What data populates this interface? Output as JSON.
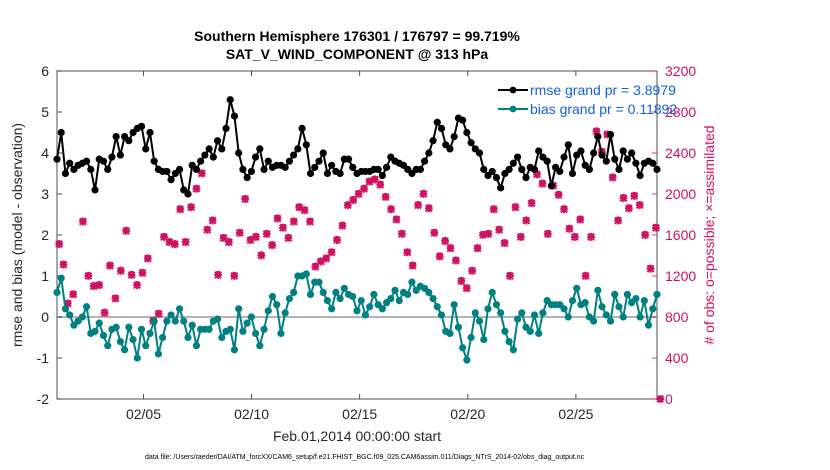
{
  "chart_data": {
    "type": "line",
    "title": "Southern Hemisphere 176301 / 176797 = 99.719%",
    "subtitle": "SAT_V_WIND_COMPONENT @ 313 hPa",
    "xlabel": "Feb.01,2014 00:00:00 start",
    "ylabel": "rmse and bias (model - observation)",
    "ylabel_right": "# of obs: o=possible; ×=assimilated",
    "footer": "data file: /Users/raeder/DAI/ATM_forcXX/CAM6_setup/f.e21.FHIST_BGC.f09_025.CAM6assim.011/Diags_NTrS_2014-02/obs_diag_output.nc",
    "x_ticks": [
      "02/05",
      "02/10",
      "02/15",
      "02/20",
      "02/25"
    ],
    "x_tick_days": [
      5,
      10,
      15,
      20,
      25
    ],
    "xlim_days": [
      1,
      28.75
    ],
    "ylim": [
      -2,
      6
    ],
    "y_ticks": [
      "-2",
      "-1",
      "0",
      "1",
      "2",
      "3",
      "4",
      "5",
      "6"
    ],
    "ylim_right": [
      0,
      3200
    ],
    "y_ticks_right": [
      "0",
      "400",
      "800",
      "1200",
      "1600",
      "2000",
      "2400",
      "2800",
      "3200"
    ],
    "legend_position": "top-right",
    "grid": false,
    "colors": {
      "rmse": "#000000",
      "bias": "#008080",
      "obs": "#d01060",
      "zero_line": "#b3b3b3",
      "legend_text": "#1560d8"
    },
    "series": [
      {
        "name": "rmse grand pr = 3.8979",
        "axis": "left",
        "values": [
          3.85,
          4.5,
          3.5,
          3.75,
          3.6,
          3.7,
          3.75,
          3.8,
          3.6,
          3.1,
          3.85,
          3.8,
          3.6,
          3.9,
          4.4,
          3.95,
          4.4,
          4.3,
          4.5,
          4.6,
          4.65,
          4.1,
          4.5,
          3.8,
          3.6,
          3.55,
          3.55,
          3.35,
          3.5,
          3.6,
          3.1,
          3.0,
          3.7,
          3.6,
          3.8,
          3.95,
          4.1,
          3.9,
          4.3,
          4.1,
          4.6,
          5.3,
          4.9,
          4.0,
          3.6,
          3.4,
          3.55,
          3.9,
          4.1,
          3.6,
          3.8,
          3.65,
          3.7,
          3.7,
          3.65,
          3.8,
          3.95,
          4.1,
          4.6,
          4.2,
          3.5,
          3.65,
          3.8,
          4.0,
          3.5,
          3.7,
          3.55,
          3.5,
          3.85,
          3.85,
          3.65,
          3.5,
          3.55,
          3.55,
          3.55,
          3.6,
          3.6,
          3.45,
          3.65,
          3.9,
          3.8,
          3.75,
          3.7,
          3.6,
          3.5,
          3.6,
          3.6,
          3.8,
          4.0,
          4.3,
          4.75,
          4.6,
          4.2,
          4.1,
          4.4,
          4.85,
          4.8,
          4.5,
          4.25,
          4.1,
          4.0,
          3.6,
          3.45,
          3.55,
          3.4,
          3.15,
          3.5,
          3.6,
          3.75,
          3.9,
          3.6,
          3.4,
          3.65,
          3.6,
          4.05,
          3.9,
          3.8,
          3.2,
          3.65,
          3.55,
          3.9,
          4.2,
          3.5,
          3.95,
          4.05,
          3.7,
          3.6,
          4.0,
          4.4,
          3.95,
          3.8,
          4.45,
          3.85,
          3.6,
          4.05,
          3.85,
          4.0,
          3.75,
          3.45,
          3.75,
          3.8,
          3.75,
          3.6
        ],
        "marker": "filled-circle"
      },
      {
        "name": "bias grand pr = 0.11892",
        "axis": "left",
        "values": [
          0.6,
          0.95,
          0.2,
          0.05,
          -0.2,
          -0.1,
          0.0,
          0.25,
          -0.4,
          -0.35,
          -0.15,
          -0.45,
          -0.7,
          -0.3,
          -0.25,
          -0.6,
          -0.8,
          -0.25,
          -0.55,
          -1.0,
          -0.3,
          -0.7,
          -0.4,
          -0.1,
          -0.9,
          -0.5,
          -0.1,
          0.05,
          -0.1,
          0.2,
          -0.1,
          -0.5,
          -0.2,
          -0.7,
          -0.3,
          -0.3,
          -0.3,
          -0.1,
          -0.05,
          -0.5,
          -0.35,
          -0.3,
          -0.8,
          0.2,
          -0.35,
          -0.15,
          0.0,
          -0.4,
          -0.7,
          -0.3,
          0.15,
          0.5,
          0.3,
          -0.4,
          0.1,
          0.45,
          0.6,
          1.0,
          1.0,
          1.05,
          0.55,
          0.85,
          0.85,
          0.6,
          0.4,
          0.2,
          0.6,
          0.45,
          0.7,
          0.55,
          0.5,
          0.15,
          0.4,
          0.05,
          0.25,
          0.55,
          0.3,
          0.2,
          0.35,
          0.45,
          0.65,
          0.4,
          0.6,
          0.55,
          0.85,
          0.65,
          0.75,
          0.7,
          0.6,
          0.45,
          0.25,
          0.05,
          -0.35,
          -0.4,
          0.3,
          -0.25,
          -0.75,
          -1.05,
          -0.5,
          0.1,
          -0.1,
          -0.55,
          0.2,
          0.6,
          0.3,
          0.1,
          -0.35,
          -0.6,
          -0.8,
          -0.05,
          0.1,
          -0.25,
          -0.35,
          0.05,
          -0.4,
          0.1,
          0.4,
          0.3,
          0.3,
          0.3,
          0.2,
          0.0,
          0.4,
          0.7,
          0.3,
          0.35,
          0.0,
          -0.1,
          0.65,
          0.25,
          0.05,
          -0.1,
          0.55,
          0.25,
          0.0,
          0.55,
          0.35,
          0.45,
          0.0,
          0.4,
          -0.2,
          0.2,
          0.55
        ],
        "marker": "filled-circle"
      }
    ],
    "obs_points_possible": [
      [
        1.1,
        1520
      ],
      [
        1.3,
        1320
      ],
      [
        1.5,
        940
      ],
      [
        1.75,
        1030
      ],
      [
        2.2,
        1740
      ],
      [
        2.45,
        1210
      ],
      [
        2.7,
        1110
      ],
      [
        2.95,
        1120
      ],
      [
        3.2,
        850
      ],
      [
        3.45,
        1310
      ],
      [
        3.7,
        990
      ],
      [
        3.95,
        1260
      ],
      [
        4.2,
        1650
      ],
      [
        4.45,
        1220
      ],
      [
        4.7,
        1120
      ],
      [
        4.95,
        1240
      ],
      [
        5.2,
        1380
      ],
      [
        5.45,
        770
      ],
      [
        5.7,
        840
      ],
      [
        5.95,
        1590
      ],
      [
        6.2,
        1540
      ],
      [
        6.45,
        1520
      ],
      [
        6.7,
        1860
      ],
      [
        6.95,
        1540
      ],
      [
        7.2,
        1880
      ],
      [
        7.45,
        2060
      ],
      [
        7.7,
        2210
      ],
      [
        7.95,
        1660
      ],
      [
        8.2,
        1750
      ],
      [
        8.45,
        1220
      ],
      [
        8.7,
        1580
      ],
      [
        8.95,
        1540
      ],
      [
        9.2,
        1210
      ],
      [
        9.45,
        1630
      ],
      [
        9.7,
        1960
      ],
      [
        9.95,
        1560
      ],
      [
        10.2,
        1590
      ],
      [
        10.45,
        1410
      ],
      [
        10.7,
        1620
      ],
      [
        10.95,
        1510
      ],
      [
        11.2,
        1770
      ],
      [
        11.45,
        1680
      ],
      [
        11.7,
        1580
      ],
      [
        11.95,
        1740
      ],
      [
        12.2,
        1880
      ],
      [
        12.45,
        1850
      ],
      [
        12.7,
        1740
      ],
      [
        12.95,
        1300
      ],
      [
        13.2,
        1350
      ],
      [
        13.45,
        1380
      ],
      [
        13.7,
        1440
      ],
      [
        13.95,
        1560
      ],
      [
        14.2,
        1700
      ],
      [
        14.45,
        1900
      ],
      [
        14.7,
        1950
      ],
      [
        14.95,
        2010
      ],
      [
        15.2,
        2060
      ],
      [
        15.45,
        2130
      ],
      [
        15.7,
        2150
      ],
      [
        15.95,
        2100
      ],
      [
        16.2,
        1980
      ],
      [
        16.45,
        1860
      ],
      [
        16.7,
        1760
      ],
      [
        16.95,
        1620
      ],
      [
        17.2,
        1440
      ],
      [
        17.45,
        1310
      ],
      [
        17.7,
        1900
      ],
      [
        17.95,
        2010
      ],
      [
        18.2,
        1870
      ],
      [
        18.45,
        1630
      ],
      [
        18.7,
        1400
      ],
      [
        18.95,
        1550
      ],
      [
        19.2,
        1480
      ],
      [
        19.45,
        1360
      ],
      [
        19.7,
        1160
      ],
      [
        19.95,
        1090
      ],
      [
        20.2,
        1260
      ],
      [
        20.45,
        1480
      ],
      [
        20.7,
        1610
      ],
      [
        20.95,
        1620
      ],
      [
        21.2,
        1860
      ],
      [
        21.45,
        1660
      ],
      [
        21.7,
        1530
      ],
      [
        21.95,
        1210
      ],
      [
        22.2,
        1880
      ],
      [
        22.45,
        1590
      ],
      [
        22.7,
        1750
      ],
      [
        22.95,
        1920
      ],
      [
        23.2,
        2200
      ],
      [
        23.45,
        2110
      ],
      [
        23.7,
        1620
      ],
      [
        23.95,
        2090
      ],
      [
        24.2,
        2000
      ],
      [
        24.45,
        1860
      ],
      [
        24.7,
        1670
      ],
      [
        24.95,
        1590
      ],
      [
        25.2,
        1760
      ],
      [
        25.45,
        1210
      ],
      [
        25.7,
        1590
      ],
      [
        25.95,
        2620
      ],
      [
        26.2,
        2420
      ],
      [
        26.45,
        2590
      ],
      [
        26.7,
        2170
      ],
      [
        26.95,
        1750
      ],
      [
        27.2,
        1970
      ],
      [
        27.45,
        1870
      ],
      [
        27.7,
        1990
      ],
      [
        27.95,
        1900
      ],
      [
        28.2,
        1610
      ],
      [
        28.45,
        1280
      ],
      [
        28.7,
        1680
      ],
      [
        28.9,
        0
      ]
    ],
    "obs_points_assimilated": [
      [
        1.1,
        1510
      ],
      [
        1.3,
        1310
      ],
      [
        1.5,
        930
      ],
      [
        1.75,
        1020
      ],
      [
        2.2,
        1730
      ],
      [
        2.45,
        1200
      ],
      [
        2.7,
        1100
      ],
      [
        2.95,
        1110
      ],
      [
        3.2,
        840
      ],
      [
        3.45,
        1300
      ],
      [
        3.7,
        980
      ],
      [
        3.95,
        1250
      ],
      [
        4.2,
        1640
      ],
      [
        4.45,
        1210
      ],
      [
        4.7,
        1110
      ],
      [
        4.95,
        1230
      ],
      [
        5.2,
        1370
      ],
      [
        5.45,
        760
      ],
      [
        5.7,
        830
      ],
      [
        5.95,
        1580
      ],
      [
        6.2,
        1530
      ],
      [
        6.45,
        1510
      ],
      [
        6.7,
        1850
      ],
      [
        6.95,
        1530
      ],
      [
        7.2,
        1870
      ],
      [
        7.45,
        2050
      ],
      [
        7.7,
        2200
      ],
      [
        7.95,
        1650
      ],
      [
        8.2,
        1740
      ],
      [
        8.45,
        1210
      ],
      [
        8.7,
        1570
      ],
      [
        8.95,
        1530
      ],
      [
        9.2,
        1200
      ],
      [
        9.45,
        1620
      ],
      [
        9.7,
        1950
      ],
      [
        9.95,
        1550
      ],
      [
        10.2,
        1580
      ],
      [
        10.45,
        1400
      ],
      [
        10.7,
        1610
      ],
      [
        10.95,
        1500
      ],
      [
        11.2,
        1760
      ],
      [
        11.45,
        1670
      ],
      [
        11.7,
        1570
      ],
      [
        11.95,
        1730
      ],
      [
        12.2,
        1870
      ],
      [
        12.45,
        1840
      ],
      [
        12.7,
        1730
      ],
      [
        12.95,
        1290
      ],
      [
        13.2,
        1340
      ],
      [
        13.45,
        1370
      ],
      [
        13.7,
        1430
      ],
      [
        13.95,
        1550
      ],
      [
        14.2,
        1690
      ],
      [
        14.45,
        1890
      ],
      [
        14.7,
        1940
      ],
      [
        14.95,
        2000
      ],
      [
        15.2,
        2050
      ],
      [
        15.45,
        2120
      ],
      [
        15.7,
        2140
      ],
      [
        15.95,
        2090
      ],
      [
        16.2,
        1970
      ],
      [
        16.45,
        1850
      ],
      [
        16.7,
        1750
      ],
      [
        16.95,
        1610
      ],
      [
        17.2,
        1430
      ],
      [
        17.45,
        1300
      ],
      [
        17.7,
        1890
      ],
      [
        17.95,
        2000
      ],
      [
        18.2,
        1860
      ],
      [
        18.45,
        1620
      ],
      [
        18.7,
        1390
      ],
      [
        18.95,
        1540
      ],
      [
        19.2,
        1470
      ],
      [
        19.45,
        1350
      ],
      [
        19.7,
        1150
      ],
      [
        19.95,
        1080
      ],
      [
        20.2,
        1250
      ],
      [
        20.45,
        1470
      ],
      [
        20.7,
        1600
      ],
      [
        20.95,
        1610
      ],
      [
        21.2,
        1850
      ],
      [
        21.45,
        1650
      ],
      [
        21.7,
        1520
      ],
      [
        21.95,
        1200
      ],
      [
        22.2,
        1870
      ],
      [
        22.45,
        1580
      ],
      [
        22.7,
        1740
      ],
      [
        22.95,
        1910
      ],
      [
        23.2,
        2190
      ],
      [
        23.45,
        2100
      ],
      [
        23.7,
        1610
      ],
      [
        23.95,
        2080
      ],
      [
        24.2,
        1990
      ],
      [
        24.45,
        1850
      ],
      [
        24.7,
        1660
      ],
      [
        24.95,
        1580
      ],
      [
        25.2,
        1750
      ],
      [
        25.45,
        1200
      ],
      [
        25.7,
        1580
      ],
      [
        25.95,
        2610
      ],
      [
        26.2,
        2410
      ],
      [
        26.45,
        2580
      ],
      [
        26.7,
        2160
      ],
      [
        26.95,
        1740
      ],
      [
        27.2,
        1960
      ],
      [
        27.45,
        1860
      ],
      [
        27.7,
        1980
      ],
      [
        27.95,
        1890
      ],
      [
        28.2,
        1600
      ],
      [
        28.45,
        1270
      ],
      [
        28.7,
        1670
      ],
      [
        28.9,
        0
      ]
    ]
  }
}
